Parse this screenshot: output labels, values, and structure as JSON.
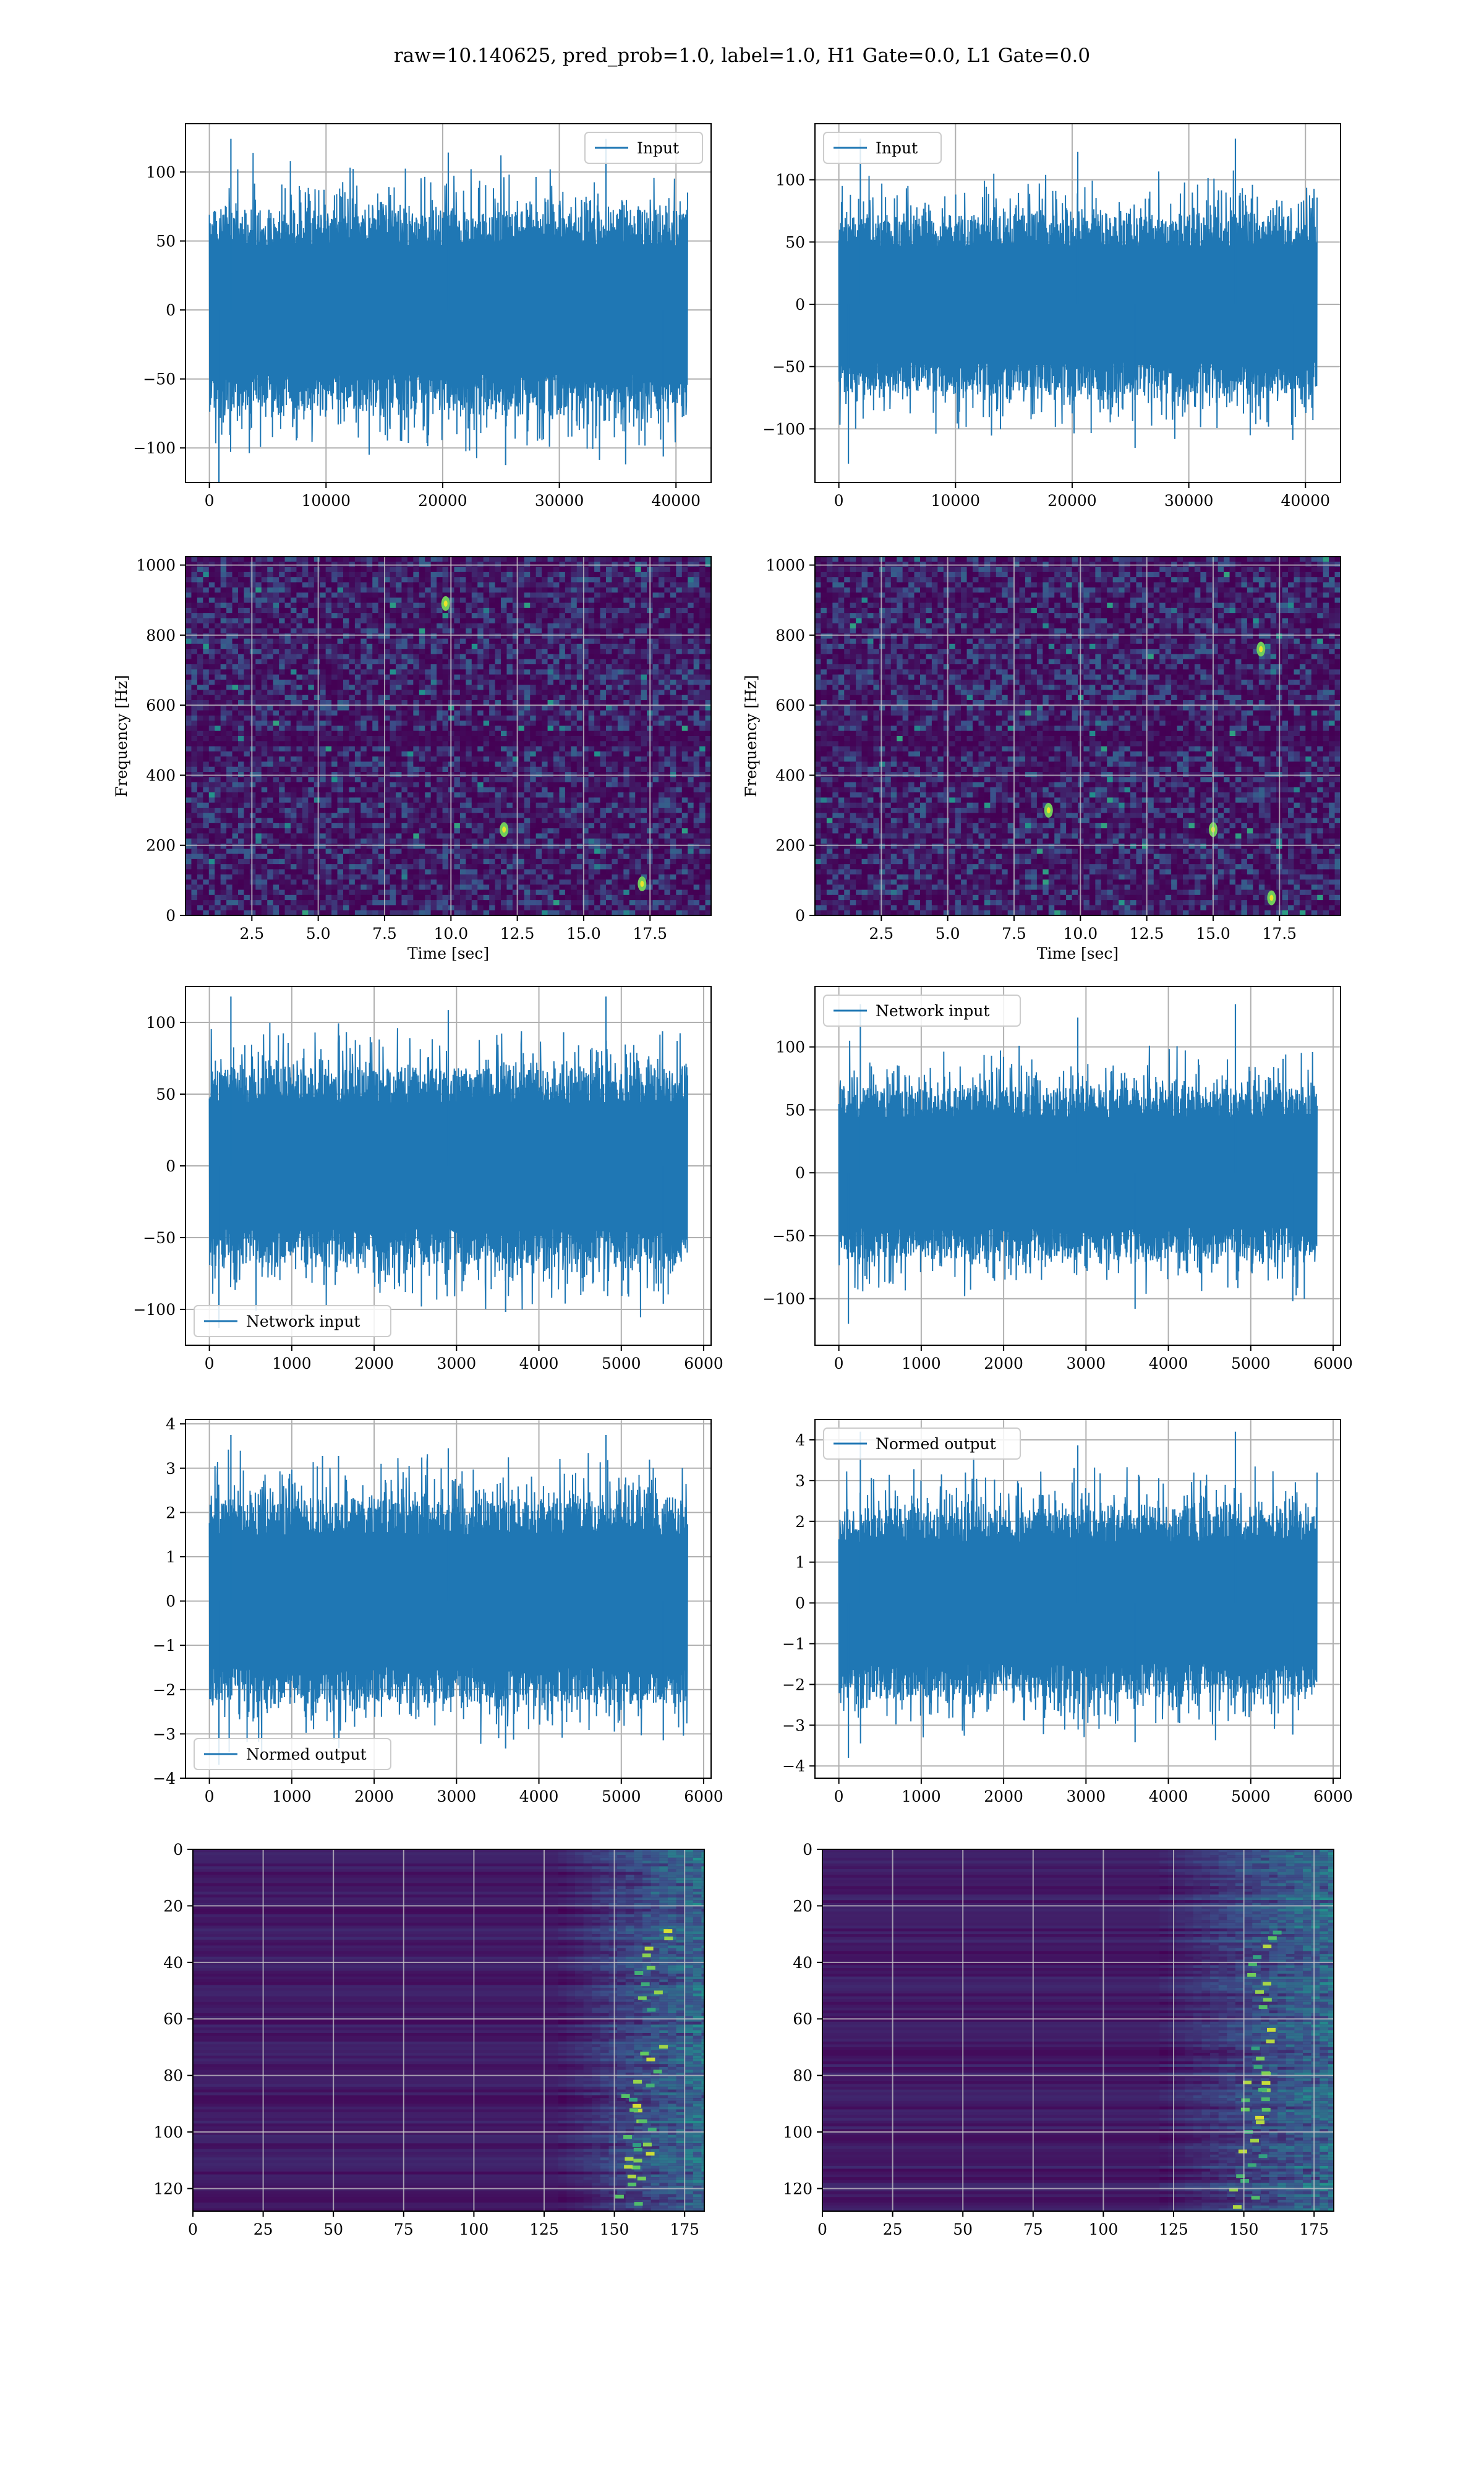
{
  "figure_title": "raw=10.140625, pred_prob=1.0, label=1.0, H1 Gate=0.0, L1 Gate=0.0",
  "colors": {
    "line": "#1f77b4",
    "grid": "#b0b0b0",
    "viridis_dark": "#440154",
    "viridis_mid": "#31688e",
    "viridis_green": "#35b779",
    "viridis_yellow": "#fde725"
  },
  "chart_data": [
    {
      "id": "h1-input",
      "type": "line",
      "legend": [
        "Input"
      ],
      "legend_loc": "upper right",
      "xlim": [
        -2048,
        43008
      ],
      "ylim": [
        -125,
        135
      ],
      "xticks": [
        0,
        10000,
        20000,
        30000,
        40000
      ],
      "yticks": [
        -100,
        -50,
        0,
        50,
        100
      ],
      "series": [
        {
          "name": "Input",
          "n_samples": 40960,
          "band": [
            -47,
            47
          ],
          "peak_max": 124,
          "peak_min": -125
        }
      ]
    },
    {
      "id": "l1-input",
      "type": "line",
      "legend": [
        "Input"
      ],
      "legend_loc": "upper left",
      "xlim": [
        -2048,
        43008
      ],
      "ylim": [
        -143,
        145
      ],
      "xticks": [
        0,
        10000,
        20000,
        30000,
        40000
      ],
      "yticks": [
        -100,
        -50,
        0,
        50,
        100
      ],
      "series": [
        {
          "name": "Input",
          "n_samples": 40960,
          "band": [
            -47,
            47
          ],
          "peak_max": 133,
          "peak_min": -128
        }
      ]
    },
    {
      "id": "h1-spectrogram",
      "type": "heatmap",
      "xlabel": "Time [sec]",
      "ylabel": "Frequency [Hz]",
      "xlim": [
        0,
        19.8
      ],
      "ylim": [
        0,
        1024
      ],
      "xticks": [
        2.5,
        5.0,
        7.5,
        10.0,
        12.5,
        15.0,
        17.5
      ],
      "xtick_labels": [
        "2.5",
        "5.0",
        "7.5",
        "10.0",
        "12.5",
        "15.0",
        "17.5"
      ],
      "yticks": [
        0,
        200,
        400,
        600,
        800,
        1000
      ],
      "hotspots": [
        [
          12.0,
          245
        ],
        [
          9.8,
          890
        ],
        [
          17.2,
          90
        ]
      ],
      "colormap": "viridis"
    },
    {
      "id": "l1-spectrogram",
      "type": "heatmap",
      "xlabel": "Time [sec]",
      "ylabel": "Frequency [Hz]",
      "xlim": [
        0,
        19.8
      ],
      "ylim": [
        0,
        1024
      ],
      "xticks": [
        2.5,
        5.0,
        7.5,
        10.0,
        12.5,
        15.0,
        17.5
      ],
      "xtick_labels": [
        "2.5",
        "5.0",
        "7.5",
        "10.0",
        "12.5",
        "15.0",
        "17.5"
      ],
      "yticks": [
        0,
        200,
        400,
        600,
        800,
        1000
      ],
      "hotspots": [
        [
          17.2,
          50
        ],
        [
          16.8,
          760
        ],
        [
          15.0,
          245
        ],
        [
          8.8,
          300
        ]
      ],
      "colormap": "viridis"
    },
    {
      "id": "h1-network-input",
      "type": "line",
      "legend": [
        "Network input"
      ],
      "legend_loc": "lower left",
      "xlim": [
        -290,
        6090
      ],
      "ylim": [
        -125,
        125
      ],
      "xticks": [
        0,
        1000,
        2000,
        3000,
        4000,
        5000,
        6000
      ],
      "yticks": [
        -100,
        -50,
        0,
        50,
        100
      ],
      "series": [
        {
          "name": "Network input",
          "n_samples": 5800,
          "band": [
            -44,
            44
          ],
          "peak_max": 118,
          "peak_min": -113
        }
      ]
    },
    {
      "id": "l1-network-input",
      "type": "line",
      "legend": [
        "Network input"
      ],
      "legend_loc": "upper left",
      "xlim": [
        -290,
        6090
      ],
      "ylim": [
        -137,
        148
      ],
      "xticks": [
        0,
        1000,
        2000,
        3000,
        4000,
        5000,
        6000
      ],
      "yticks": [
        -100,
        -50,
        0,
        50,
        100
      ],
      "series": [
        {
          "name": "Network input",
          "n_samples": 5800,
          "band": [
            -44,
            44
          ],
          "peak_max": 134,
          "peak_min": -120
        }
      ]
    },
    {
      "id": "h1-normed-output",
      "type": "line",
      "legend": [
        "Normed output"
      ],
      "legend_loc": "lower left",
      "xlim": [
        -290,
        6090
      ],
      "ylim": [
        -4.0,
        4.1
      ],
      "xticks": [
        0,
        1000,
        2000,
        3000,
        4000,
        5000,
        6000
      ],
      "yticks": [
        -4,
        -3,
        -2,
        -1,
        0,
        1,
        2,
        3,
        4
      ],
      "series": [
        {
          "name": "Normed output",
          "n_samples": 5800,
          "band": [
            -1.5,
            1.5
          ],
          "peak_max": 3.75,
          "peak_min": -3.7
        }
      ]
    },
    {
      "id": "l1-normed-output",
      "type": "line",
      "legend": [
        "Normed output"
      ],
      "legend_loc": "upper left",
      "xlim": [
        -290,
        6090
      ],
      "ylim": [
        -4.3,
        4.5
      ],
      "xticks": [
        0,
        1000,
        2000,
        3000,
        4000,
        5000,
        6000
      ],
      "yticks": [
        -4,
        -3,
        -2,
        -1,
        0,
        1,
        2,
        3,
        4
      ],
      "series": [
        {
          "name": "Normed output",
          "n_samples": 5800,
          "band": [
            -1.5,
            1.5
          ],
          "peak_max": 4.2,
          "peak_min": -3.8
        }
      ]
    },
    {
      "id": "h1-feature-map",
      "type": "heatmap",
      "xlim": [
        0,
        182
      ],
      "ylim": [
        128,
        0
      ],
      "xticks": [
        0,
        25,
        50,
        75,
        100,
        125,
        150,
        175
      ],
      "yticks": [
        0,
        20,
        40,
        60,
        80,
        100,
        120
      ],
      "active_columns": [
        130,
        182
      ],
      "hot_ridge": [
        [
          165,
          40
        ],
        [
          162,
          80
        ],
        [
          160,
          100
        ],
        [
          158,
          115
        ]
      ],
      "colormap": "viridis"
    },
    {
      "id": "l1-feature-map",
      "type": "heatmap",
      "xlim": [
        0,
        182
      ],
      "ylim": [
        128,
        0
      ],
      "xticks": [
        0,
        25,
        50,
        75,
        100,
        125,
        150,
        175
      ],
      "yticks": [
        0,
        20,
        40,
        60,
        80,
        100,
        120
      ],
      "active_columns": [
        120,
        182
      ],
      "hot_ridge": [
        [
          158,
          40
        ],
        [
          158,
          75
        ],
        [
          155,
          90
        ],
        [
          152,
          120
        ]
      ],
      "colormap": "viridis"
    }
  ]
}
